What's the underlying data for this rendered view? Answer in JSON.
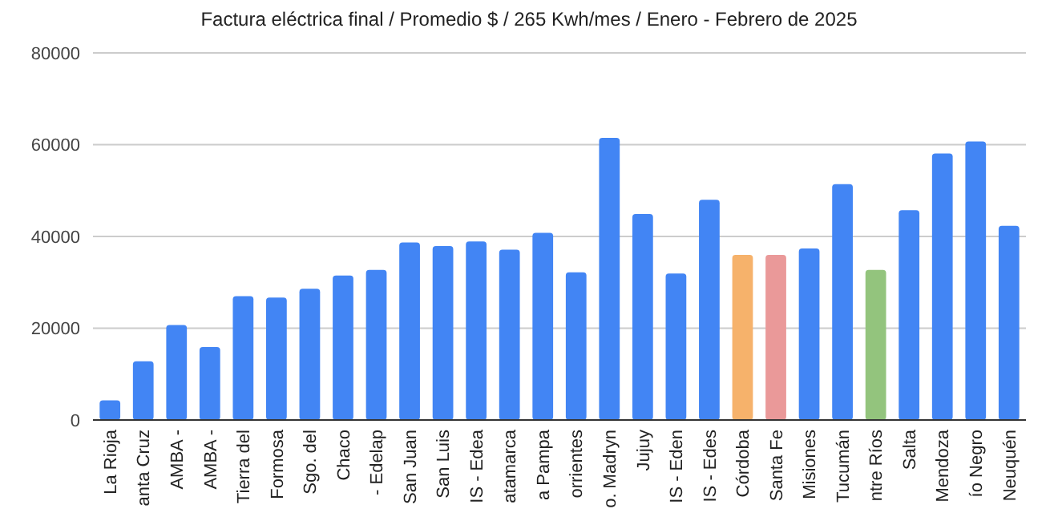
{
  "chart_data": {
    "type": "bar",
    "title": "Factura eléctrica final / Promedio $ / 265 Kwh/mes / Enero - Febrero de 2025",
    "categories": [
      "La Rioja",
      "anta Cruz",
      "AMBA -",
      "AMBA -",
      "Tierra del",
      "Formosa",
      "Sgo. del",
      "Chaco",
      "- Edelap",
      "San Juan",
      "San Luis",
      "IS - Edea",
      "atamarca",
      "a Pampa",
      "orrientes",
      "o. Madryn",
      "Jujuy",
      "IS - Eden",
      "IS - Edes",
      "Córdoba",
      "Santa Fe",
      "Misiones",
      "Tucumán",
      "ntre Ríos",
      "Salta",
      "Mendoza",
      "ío Negro",
      "Neuquén"
    ],
    "values": [
      4300,
      12800,
      20700,
      15900,
      27000,
      26700,
      28600,
      31500,
      32700,
      38700,
      37900,
      38900,
      37100,
      40800,
      32200,
      61500,
      44900,
      31900,
      48000,
      36000,
      36000,
      37400,
      51400,
      32700,
      45700,
      58100,
      60700,
      42300
    ],
    "colors": [
      "#4285f4",
      "#4285f4",
      "#4285f4",
      "#4285f4",
      "#4285f4",
      "#4285f4",
      "#4285f4",
      "#4285f4",
      "#4285f4",
      "#4285f4",
      "#4285f4",
      "#4285f4",
      "#4285f4",
      "#4285f4",
      "#4285f4",
      "#4285f4",
      "#4285f4",
      "#4285f4",
      "#4285f4",
      "#f6b26b",
      "#ea9999",
      "#4285f4",
      "#4285f4",
      "#93c47d",
      "#4285f4",
      "#4285f4",
      "#4285f4",
      "#4285f4"
    ],
    "ylim": [
      0,
      80000
    ],
    "yticks": [
      0,
      20000,
      40000,
      60000,
      80000
    ],
    "grid": "y"
  }
}
